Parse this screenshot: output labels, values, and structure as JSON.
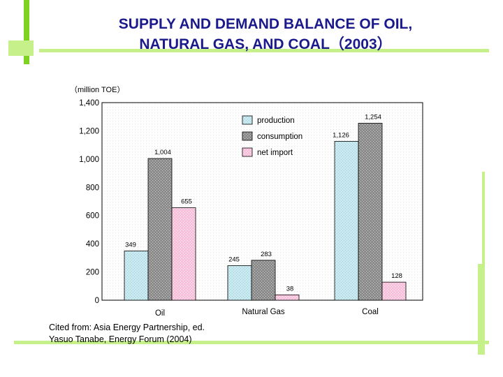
{
  "slide": {
    "title_line1": "SUPPLY AND DEMAND BALANCE OF OIL,",
    "title_line2": "NATURAL GAS, AND COAL（2003）",
    "citation_line1": "Cited from: Asia Energy Partnership, ed.",
    "citation_line2": "Yasuo Tanabe, Energy Forum (2004)"
  },
  "colors": {
    "accent_green": "#7ed321",
    "accent_green_light": "#c6f08a",
    "title": "#1a1a8c",
    "production": "#c8eaf0",
    "consumption": "#8c8c8c",
    "net_import": "#f9c0dc"
  },
  "chart_data": {
    "type": "bar",
    "unit_label": "（million TOE）",
    "categories": [
      "Oil",
      "Natural Gas",
      "Coal"
    ],
    "series": [
      {
        "name": "production",
        "values": [
          349,
          245,
          1126
        ],
        "labels": [
          "349",
          "245",
          "1,126"
        ]
      },
      {
        "name": "consumption",
        "values": [
          1004,
          283,
          1254
        ],
        "labels": [
          "1,004",
          "283",
          "1,254"
        ]
      },
      {
        "name": "net import",
        "values": [
          655,
          38,
          128
        ],
        "labels": [
          "655",
          "38",
          "128"
        ]
      }
    ],
    "ylim": [
      0,
      1400
    ],
    "y_ticks": [
      0,
      200,
      400,
      600,
      800,
      1000,
      1200,
      1400
    ],
    "y_tick_labels": [
      "0",
      "200",
      "400",
      "600",
      "800",
      "1,000",
      "1,200",
      "1,400"
    ],
    "grid": false,
    "legend_position": "top-center"
  }
}
